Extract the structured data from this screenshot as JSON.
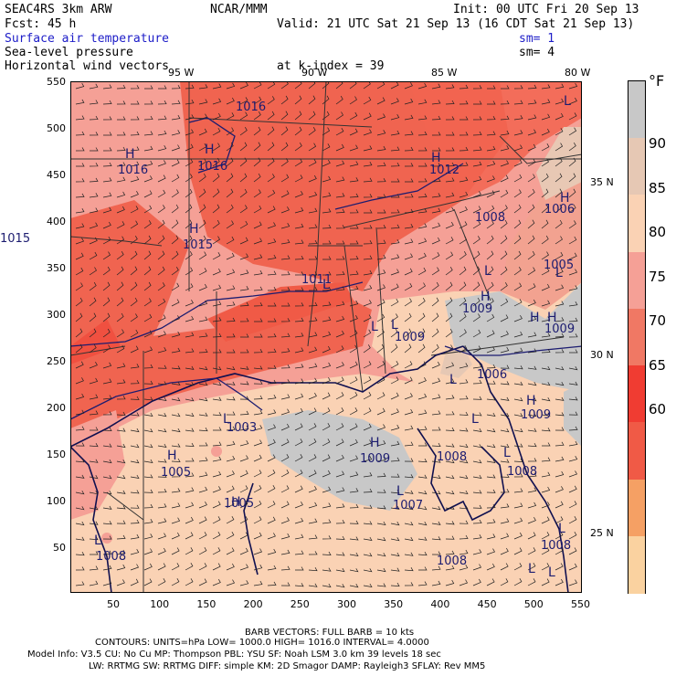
{
  "header": {
    "left1": "SEAC4RS  3km ARW",
    "center1": "NCAR/MMM",
    "right1": "Init: 00 UTC Fri 20 Sep 13",
    "left2": "Fcst:   45 h",
    "right2": "Valid: 21 UTC Sat 21 Sep 13 (16 CDT Sat 21 Sep 13)",
    "field1": "Surface air temperature",
    "sm1": "sm= 1",
    "field2": "Sea-level pressure",
    "sm2": "sm= 4",
    "field3": "Horizontal wind vectors",
    "level": "at k-index =  39"
  },
  "lon_labels": [
    "95 W",
    "90 W",
    "85 W",
    "80 W"
  ],
  "lat_labels": [
    "35 N",
    "30 N",
    "25 N"
  ],
  "y_ticks": [
    "550",
    "500",
    "450",
    "400",
    "350",
    "300",
    "250",
    "200",
    "150",
    "100",
    "50"
  ],
  "x_ticks": [
    "50",
    "100",
    "150",
    "200",
    "250",
    "300",
    "350",
    "400",
    "450",
    "500",
    "550"
  ],
  "legend": {
    "unit": "°F",
    "levels": [
      "90",
      "85",
      "80",
      "75",
      "70",
      "65",
      "60"
    ],
    "colors": [
      "#c8c8c8",
      "#e6c8b4",
      "#fad2b4",
      "#f5a096",
      "#f07864",
      "#f03c32",
      "#f05a46",
      "#f5a064",
      "#fad2a0"
    ]
  },
  "pressure_labels": {
    "highs": [
      "H",
      "H",
      "H",
      "H",
      "H",
      "H",
      "H",
      "H",
      "H",
      "H",
      "H",
      "H"
    ],
    "lows": [
      "L",
      "L",
      "L",
      "L",
      "L",
      "L",
      "L",
      "L",
      "L",
      "L",
      "L",
      "L",
      "L",
      "L",
      "L"
    ],
    "values": [
      "1016",
      "1016",
      "1016",
      "1015",
      "1015",
      "1012",
      "1011",
      "1008",
      "1006",
      "1005",
      "1009",
      "1009",
      "1009",
      "1009",
      "1008",
      "1003",
      "1005",
      "1005",
      "1008",
      "1008",
      "1009",
      "1007",
      "1008",
      "1008",
      "1006"
    ]
  },
  "footer": {
    "barb": "BARB VECTORS:  FULL BARB = 10 kts",
    "contours": "CONTOURS:  UNITS=hPa  LOW=  1000.0      HIGH=  1016.0      INTERVAL=    4.0000",
    "model1": "Model Info: V3.5     CU: No Cu    MP: Thompson    PBL: YSU     SF: Noah LSM    3.0 km   39 levels    18 sec",
    "model2": "LW: RRTMG   SW: RRTMG   DIFF: simple KM: 2D Smagor DAMP: Rayleigh3   SFLAY: Rev MM5"
  }
}
